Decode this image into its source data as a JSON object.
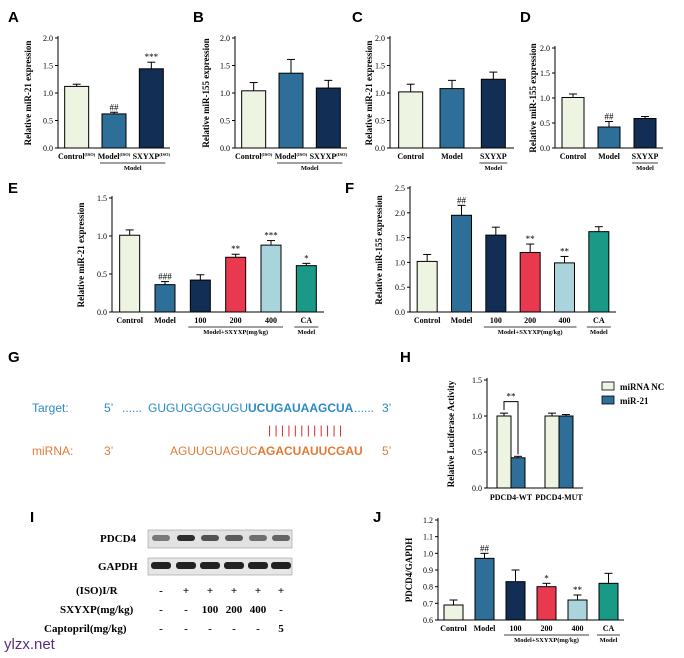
{
  "colors": {
    "control": "#eef4e2",
    "model": "#2e6f99",
    "sxyxp": "#132e55",
    "d200": "#e8394e",
    "d400": "#a9d4dc",
    "ca": "#1a9a86",
    "nc": "#eef4e2",
    "mir21": "#2e6f99",
    "target": "#2b8bc6",
    "mirna": "#e27a35",
    "pair": "#d62a2a"
  },
  "chart_data": [
    {
      "panel": "A",
      "type": "bar",
      "ylabel": "Relative miR-21 expression",
      "ylim": [
        0,
        2.0
      ],
      "yticks": [
        0.0,
        0.5,
        1.0,
        1.5,
        2.0
      ],
      "categories": [
        "Control",
        "Model",
        "SXYXP"
      ],
      "category_superscripts": [
        "(ISO)",
        "(ISO)",
        "(ISO)"
      ],
      "values": [
        1.12,
        0.62,
        1.44
      ],
      "errors": [
        0.04,
        0.03,
        0.12
      ],
      "colors": [
        "control",
        "model",
        "sxyxp"
      ],
      "sig": [
        "",
        "##",
        "***"
      ],
      "group_label": "Model",
      "group_span": [
        1,
        2
      ]
    },
    {
      "panel": "B",
      "type": "bar",
      "ylabel": "Relative miR-155 expression",
      "ylim": [
        0,
        2.0
      ],
      "yticks": [
        0.0,
        0.5,
        1.0,
        1.5,
        2.0
      ],
      "categories": [
        "Control",
        "Model",
        "SXYXP"
      ],
      "category_superscripts": [
        "(ISO)",
        "(ISO)",
        "(ISO)"
      ],
      "values": [
        1.04,
        1.36,
        1.09
      ],
      "errors": [
        0.15,
        0.25,
        0.14
      ],
      "colors": [
        "control",
        "model",
        "sxyxp"
      ],
      "sig": [
        "",
        "",
        ""
      ],
      "group_label": "Model",
      "group_span": [
        1,
        2
      ]
    },
    {
      "panel": "C",
      "type": "bar",
      "ylabel": "Relative miR-21 expression",
      "ylim": [
        0,
        2.0
      ],
      "yticks": [
        0.0,
        0.5,
        1.0,
        1.5,
        2.0
      ],
      "categories": [
        "Control",
        "Model",
        "SXYXP"
      ],
      "category_superscripts": [
        "",
        "",
        ""
      ],
      "values": [
        1.02,
        1.08,
        1.25
      ],
      "errors": [
        0.14,
        0.15,
        0.13
      ],
      "colors": [
        "control",
        "model",
        "sxyxp"
      ],
      "sig": [
        "",
        "",
        ""
      ],
      "group_label": "Model",
      "group_span": [
        2,
        2
      ]
    },
    {
      "panel": "D",
      "type": "bar",
      "ylabel": "Relative miR-155 expression",
      "ylim": [
        0,
        2.0
      ],
      "yticks": [
        0.0,
        0.5,
        1.0,
        1.5,
        2.0
      ],
      "categories": [
        "Control",
        "Model",
        "SXYXP"
      ],
      "category_superscripts": [
        "",
        "",
        ""
      ],
      "values": [
        1.01,
        0.42,
        0.59
      ],
      "errors": [
        0.07,
        0.11,
        0.04
      ],
      "colors": [
        "control",
        "model",
        "sxyxp"
      ],
      "sig": [
        "",
        "##",
        ""
      ],
      "group_label": "Model",
      "group_span": [
        2,
        2
      ]
    },
    {
      "panel": "E",
      "type": "bar",
      "ylabel": "Relative miR-21 expression",
      "ylim": [
        0,
        1.5
      ],
      "yticks": [
        0.0,
        0.5,
        1.0,
        1.5
      ],
      "categories": [
        "Control",
        "Model",
        "100",
        "200",
        "400",
        "CA"
      ],
      "category_superscripts": [
        "",
        "",
        "",
        "",
        "",
        ""
      ],
      "values": [
        1.01,
        0.36,
        0.42,
        0.72,
        0.88,
        0.61
      ],
      "errors": [
        0.07,
        0.04,
        0.07,
        0.04,
        0.06,
        0.03
      ],
      "colors": [
        "control",
        "model",
        "sxyxp",
        "d200",
        "d400",
        "ca"
      ],
      "sig": [
        "",
        "###",
        "",
        "**",
        "***",
        "*"
      ],
      "groups": [
        {
          "label": "Model+SXYXP(mg/kg)",
          "span": [
            2,
            4
          ]
        },
        {
          "label": "Model",
          "span": [
            5,
            5
          ]
        }
      ]
    },
    {
      "panel": "F",
      "type": "bar",
      "ylabel": "Relative miR-155 expression",
      "ylim": [
        0,
        2.5
      ],
      "yticks": [
        0.0,
        0.5,
        1.0,
        1.5,
        2.0,
        2.5
      ],
      "categories": [
        "Control",
        "Model",
        "100",
        "200",
        "400",
        "CA"
      ],
      "category_superscripts": [
        "",
        "",
        "",
        "",
        "",
        ""
      ],
      "values": [
        1.02,
        1.95,
        1.55,
        1.2,
        0.99,
        1.62
      ],
      "errors": [
        0.14,
        0.2,
        0.16,
        0.17,
        0.13,
        0.1
      ],
      "colors": [
        "control",
        "model",
        "sxyxp",
        "d200",
        "d400",
        "ca"
      ],
      "sig": [
        "",
        "##",
        "",
        "**",
        "**",
        ""
      ],
      "groups": [
        {
          "label": "Model+SXYXP(mg/kg)",
          "span": [
            2,
            4
          ]
        },
        {
          "label": "Model",
          "span": [
            5,
            5
          ]
        }
      ]
    },
    {
      "panel": "H",
      "type": "bar",
      "ylabel": "Relative Luciferase Activity",
      "ylim": [
        0,
        1.5
      ],
      "yticks": [
        0.0,
        0.5,
        1.0,
        1.5
      ],
      "categories": [
        "PDCD4-WT",
        "PDCD4-MUT"
      ],
      "series": [
        {
          "name": "miRNA NC",
          "color": "nc",
          "values": [
            1.0,
            1.0
          ],
          "errors": [
            0.04,
            0.04
          ]
        },
        {
          "name": "miR-21",
          "color": "mir21",
          "values": [
            0.42,
            1.0
          ],
          "errors": [
            0.02,
            0.02
          ]
        }
      ],
      "sig_bracket": "**"
    },
    {
      "panel": "J",
      "type": "bar",
      "ylabel": "PDCD4/GAPDH",
      "ylim": [
        0.6,
        1.2
      ],
      "yticks": [
        0.6,
        0.7,
        0.8,
        0.9,
        1.0,
        1.1,
        1.2
      ],
      "categories": [
        "Control",
        "Model",
        "100",
        "200",
        "400",
        "CA"
      ],
      "category_superscripts": [
        "",
        "",
        "",
        "",
        "",
        ""
      ],
      "values": [
        0.69,
        0.97,
        0.83,
        0.8,
        0.72,
        0.82
      ],
      "errors": [
        0.03,
        0.03,
        0.07,
        0.02,
        0.03,
        0.06
      ],
      "colors": [
        "control",
        "model",
        "sxyxp",
        "d200",
        "d400",
        "ca"
      ],
      "sig": [
        "",
        "##",
        "",
        "*",
        "**",
        ""
      ],
      "groups": [
        {
          "label": "Model+SXYXP(mg/kg)",
          "span": [
            2,
            4
          ]
        },
        {
          "label": "Model",
          "span": [
            5,
            5
          ]
        }
      ]
    }
  ],
  "panel_g": {
    "label": "G",
    "target_label": "Target:",
    "target_5": "5’",
    "target_dots_left": "......",
    "target_seq_plain": "GUGUGGGGUGU",
    "target_seq_bold": "UCUGAUAAGCUA",
    "target_dots_right": "......",
    "target_3": "3’",
    "pairing": "| | | | | | | | | | | |",
    "mirna_label": "miRNA:",
    "mirna_3": "3’",
    "mirna_seq_plain": "AGUUGUAGUC",
    "mirna_seq_bold": "AGACUAUUCGAU",
    "mirna_5": "5’"
  },
  "panel_i": {
    "label": "I",
    "bands": [
      "PDCD4",
      "GAPDH"
    ],
    "rows": [
      {
        "label": "(ISO)I/R",
        "values": [
          "-",
          "+",
          "+",
          "+",
          "+",
          "+"
        ]
      },
      {
        "label": "SXYXP(mg/kg)",
        "values": [
          "-",
          "-",
          "100",
          "200",
          "400",
          "-"
        ]
      },
      {
        "label": "Captopril(mg/kg)",
        "values": [
          "-",
          "-",
          "-",
          "-",
          "-",
          "5"
        ]
      }
    ]
  },
  "watermark": "ylzx.net"
}
